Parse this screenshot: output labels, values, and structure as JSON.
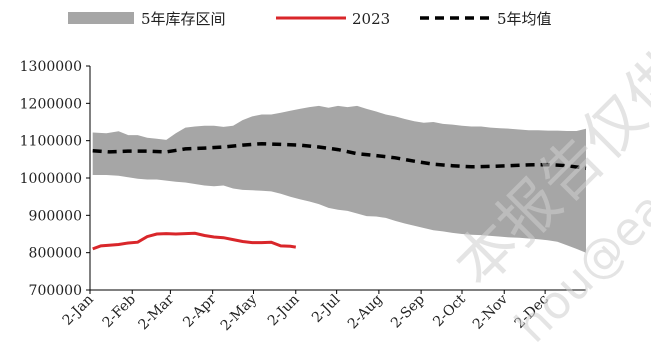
{
  "chart_data": {
    "type": "area",
    "legend": {
      "placement": "top",
      "entries": [
        {
          "key": "range",
          "label": "5年库存区间",
          "color": "#a6a6a6"
        },
        {
          "key": "y2023",
          "label": "2023",
          "color": "#d9262a"
        },
        {
          "key": "avg",
          "label": "5年均值",
          "color": "#000000"
        }
      ]
    },
    "yaxis": {
      "ylim": [
        700000,
        1300000
      ],
      "ticks": [
        700000,
        800000,
        900000,
        1000000,
        1100000,
        1200000,
        1300000
      ],
      "tick_labels": [
        "700000",
        "800000",
        "900000",
        "1000000",
        "1100000",
        "1200000",
        "1300000"
      ]
    },
    "xaxis": {
      "domain": [
        0,
        364
      ],
      "tick_days": [
        0,
        31,
        59,
        90,
        120,
        151,
        181,
        212,
        243,
        273,
        304,
        334
      ],
      "tick_labels": [
        "2-Jan",
        "2-Feb",
        "2-Mar",
        "2-Apr",
        "2-May",
        "2-Jun",
        "2-Jul",
        "2-Aug",
        "2-Sep",
        "2-Oct",
        "2-Nov",
        "2-Dec"
      ]
    },
    "range_band": {
      "name": "5年库存区间",
      "x": [
        2,
        12,
        21,
        28,
        35,
        42,
        49,
        56,
        63,
        70,
        77,
        84,
        91,
        98,
        105,
        112,
        119,
        126,
        133,
        140,
        147,
        154,
        161,
        168,
        175,
        182,
        189,
        196,
        203,
        210,
        217,
        224,
        231,
        238,
        245,
        252,
        259,
        266,
        273,
        280,
        287,
        294,
        301,
        308,
        315,
        322,
        329,
        336,
        343,
        350,
        357,
        364
      ],
      "high": [
        1122000,
        1120000,
        1125000,
        1115000,
        1115000,
        1108000,
        1105000,
        1102000,
        1120000,
        1135000,
        1138000,
        1140000,
        1140000,
        1137000,
        1140000,
        1155000,
        1165000,
        1170000,
        1170000,
        1175000,
        1180000,
        1185000,
        1190000,
        1193000,
        1188000,
        1193000,
        1190000,
        1193000,
        1185000,
        1178000,
        1170000,
        1165000,
        1158000,
        1152000,
        1148000,
        1150000,
        1145000,
        1143000,
        1140000,
        1138000,
        1138000,
        1135000,
        1133000,
        1132000,
        1130000,
        1128000,
        1128000,
        1127000,
        1127000,
        1126000,
        1126000,
        1132000
      ],
      "low": [
        1008000,
        1008000,
        1006000,
        1002000,
        998000,
        996000,
        996000,
        993000,
        990000,
        988000,
        984000,
        980000,
        978000,
        980000,
        972000,
        968000,
        967000,
        966000,
        964000,
        958000,
        950000,
        943000,
        937000,
        930000,
        920000,
        915000,
        912000,
        905000,
        898000,
        897000,
        893000,
        885000,
        878000,
        872000,
        866000,
        860000,
        857000,
        853000,
        850000,
        848000,
        847000,
        845000,
        843000,
        841000,
        840000,
        838000,
        836000,
        833000,
        829000,
        820000,
        810000,
        800000
      ]
    },
    "series": [
      {
        "name": "2023",
        "x": [
          2,
          8,
          14,
          21,
          28,
          35,
          42,
          49,
          56,
          63,
          70,
          77,
          84,
          91,
          98,
          105,
          112,
          119,
          126,
          133,
          140,
          147,
          151
        ],
        "values": [
          810000,
          818000,
          820000,
          822000,
          826000,
          828000,
          843000,
          850000,
          851000,
          850000,
          851000,
          852000,
          846000,
          842000,
          840000,
          835000,
          830000,
          827000,
          827000,
          828000,
          818000,
          817000,
          815000
        ]
      },
      {
        "name": "5年均值",
        "x": [
          2,
          14,
          28,
          42,
          56,
          70,
          84,
          98,
          112,
          126,
          140,
          154,
          168,
          182,
          196,
          210,
          224,
          238,
          252,
          266,
          280,
          294,
          308,
          322,
          336,
          350,
          364
        ],
        "values": [
          1073000,
          1070000,
          1072000,
          1072000,
          1070000,
          1078000,
          1080000,
          1083000,
          1088000,
          1092000,
          1090000,
          1088000,
          1083000,
          1076000,
          1065000,
          1060000,
          1054000,
          1045000,
          1037000,
          1033000,
          1030000,
          1031000,
          1033000,
          1035000,
          1036000,
          1033000,
          1026000
        ]
      }
    ]
  }
}
